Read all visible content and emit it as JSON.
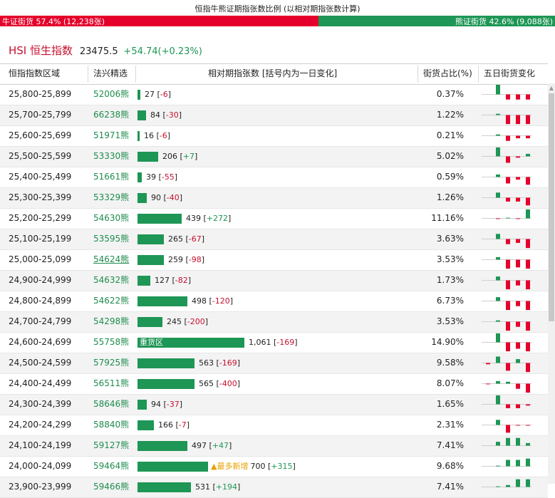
{
  "title": "恒指牛熊证期指张数比例 (以相对期指张数计算)",
  "ratio": {
    "bull_label": "牛证街货 57.4% (12,238张)",
    "bull_fraction": 0.574,
    "bear_label": "熊证街货 42.6% (9,088张)",
    "bear_fraction": 0.426,
    "bull_color": "#e4002b",
    "bear_color": "#1e9655"
  },
  "index": {
    "name": "HSI 恒生指数",
    "value": "23475.5",
    "change": "+54.74(+0.23%)"
  },
  "columns": {
    "range": "恒指指数区域",
    "warrant": "法兴精选",
    "contracts": "相对期指张数 [括号内为一日变化]",
    "share": "街货占比(%)",
    "five_day": "五日街货变化"
  },
  "colors": {
    "up": "#1e9655",
    "down": "#e4002b"
  },
  "max_contracts": 1061,
  "rows": [
    {
      "range": "25,800-25,899",
      "warrant": "52006熊",
      "contracts": 27,
      "contracts_text": "27",
      "delta": "-6",
      "share": "0.37%",
      "five": [
        0,
        18,
        -8,
        -8,
        -8
      ]
    },
    {
      "range": "25,700-25,799",
      "warrant": "66238熊",
      "contracts": 84,
      "contracts_text": "84",
      "delta": "-30",
      "share": "1.22%",
      "five": [
        0,
        2,
        -14,
        -14,
        -14
      ]
    },
    {
      "range": "25,600-25,699",
      "warrant": "51971熊",
      "contracts": 16,
      "contracts_text": "16",
      "delta": "-6",
      "share": "0.21%",
      "five": [
        0,
        2,
        -8,
        -4,
        -4
      ]
    },
    {
      "range": "25,500-25,599",
      "warrant": "53330熊",
      "contracts": 206,
      "contracts_text": "206",
      "delta": "+7",
      "share": "5.02%",
      "five": [
        0,
        14,
        -10,
        -2,
        4
      ]
    },
    {
      "range": "25,400-25,499",
      "warrant": "51661熊",
      "contracts": 39,
      "contracts_text": "39",
      "delta": "-55",
      "share": "0.59%",
      "five": [
        0,
        4,
        -10,
        -4,
        -12
      ]
    },
    {
      "range": "25,300-25,399",
      "warrant": "53329熊",
      "contracts": 90,
      "contracts_text": "90",
      "delta": "-40",
      "share": "1.26%",
      "five": [
        0,
        8,
        -6,
        -6,
        -12
      ]
    },
    {
      "range": "25,200-25,299",
      "warrant": "54630熊",
      "contracts": 439,
      "contracts_text": "439",
      "delta": "+272",
      "share": "11.16%",
      "five": [
        0,
        -1,
        1,
        -1,
        14
      ]
    },
    {
      "range": "25,100-25,199",
      "warrant": "53595熊",
      "contracts": 265,
      "contracts_text": "265",
      "delta": "-67",
      "share": "3.63%",
      "five": [
        0,
        8,
        -8,
        -6,
        -14
      ]
    },
    {
      "range": "25,000-25,099",
      "warrant": "54624熊",
      "underline": true,
      "contracts": 259,
      "contracts_text": "259",
      "delta": "-98",
      "share": "3.53%",
      "five": [
        0,
        4,
        -14,
        -12,
        -14
      ]
    },
    {
      "range": "24,900-24,999",
      "warrant": "54632熊",
      "contracts": 127,
      "contracts_text": "127",
      "delta": "-82",
      "share": "1.73%",
      "five": [
        0,
        6,
        -14,
        -8,
        -14
      ]
    },
    {
      "range": "24,800-24,899",
      "warrant": "54622熊",
      "contracts": 498,
      "contracts_text": "498",
      "delta": "-120",
      "share": "6.73%",
      "five": [
        0,
        6,
        -14,
        -8,
        -14
      ]
    },
    {
      "range": "24,700-24,799",
      "warrant": "54298熊",
      "contracts": 245,
      "contracts_text": "245",
      "delta": "-200",
      "share": "3.53%",
      "five": [
        0,
        2,
        -14,
        -8,
        -14
      ]
    },
    {
      "range": "24,600-24,699",
      "warrant": "55758熊",
      "contracts": 1061,
      "contracts_text": "1,061",
      "delta": "-169",
      "share": "14.90%",
      "bar_label": "重货区",
      "five": [
        0,
        14,
        -14,
        -10,
        -14
      ]
    },
    {
      "range": "24,500-24,599",
      "warrant": "57925熊",
      "contracts": 563,
      "contracts_text": "563",
      "delta": "-169",
      "share": "9.58%",
      "five": [
        -2,
        10,
        -12,
        6,
        -14
      ]
    },
    {
      "range": "24,400-24,499",
      "warrant": "56511熊",
      "contracts": 565,
      "contracts_text": "565",
      "delta": "-400",
      "share": "8.07%",
      "five": [
        -1,
        4,
        3,
        -8,
        -14
      ]
    },
    {
      "range": "24,300-24,399",
      "warrant": "58646熊",
      "contracts": 94,
      "contracts_text": "94",
      "delta": "-37",
      "share": "1.65%",
      "five": [
        0,
        14,
        -6,
        -6,
        -2
      ]
    },
    {
      "range": "24,200-24,299",
      "warrant": "58840熊",
      "contracts": 166,
      "contracts_text": "166",
      "delta": "-7",
      "share": "2.31%",
      "five": [
        0,
        8,
        -12,
        -1,
        -1
      ]
    },
    {
      "range": "24,100-24,199",
      "warrant": "59127熊",
      "contracts": 497,
      "contracts_text": "497",
      "delta": "+47",
      "share": "7.41%",
      "five": [
        0,
        6,
        12,
        12,
        4
      ]
    },
    {
      "range": "24,000-24,099",
      "warrant": "59464熊",
      "contracts": 700,
      "contracts_text": "700",
      "delta": "+315",
      "share": "9.68%",
      "highlight": "▲最多新增",
      "five": [
        0,
        1,
        10,
        10,
        12
      ]
    },
    {
      "range": "23,900-23,999",
      "warrant": "59466熊",
      "contracts": 531,
      "contracts_text": "531",
      "delta": "+194",
      "share": "7.41%",
      "five": [
        0,
        1,
        3,
        12,
        12
      ]
    }
  ]
}
